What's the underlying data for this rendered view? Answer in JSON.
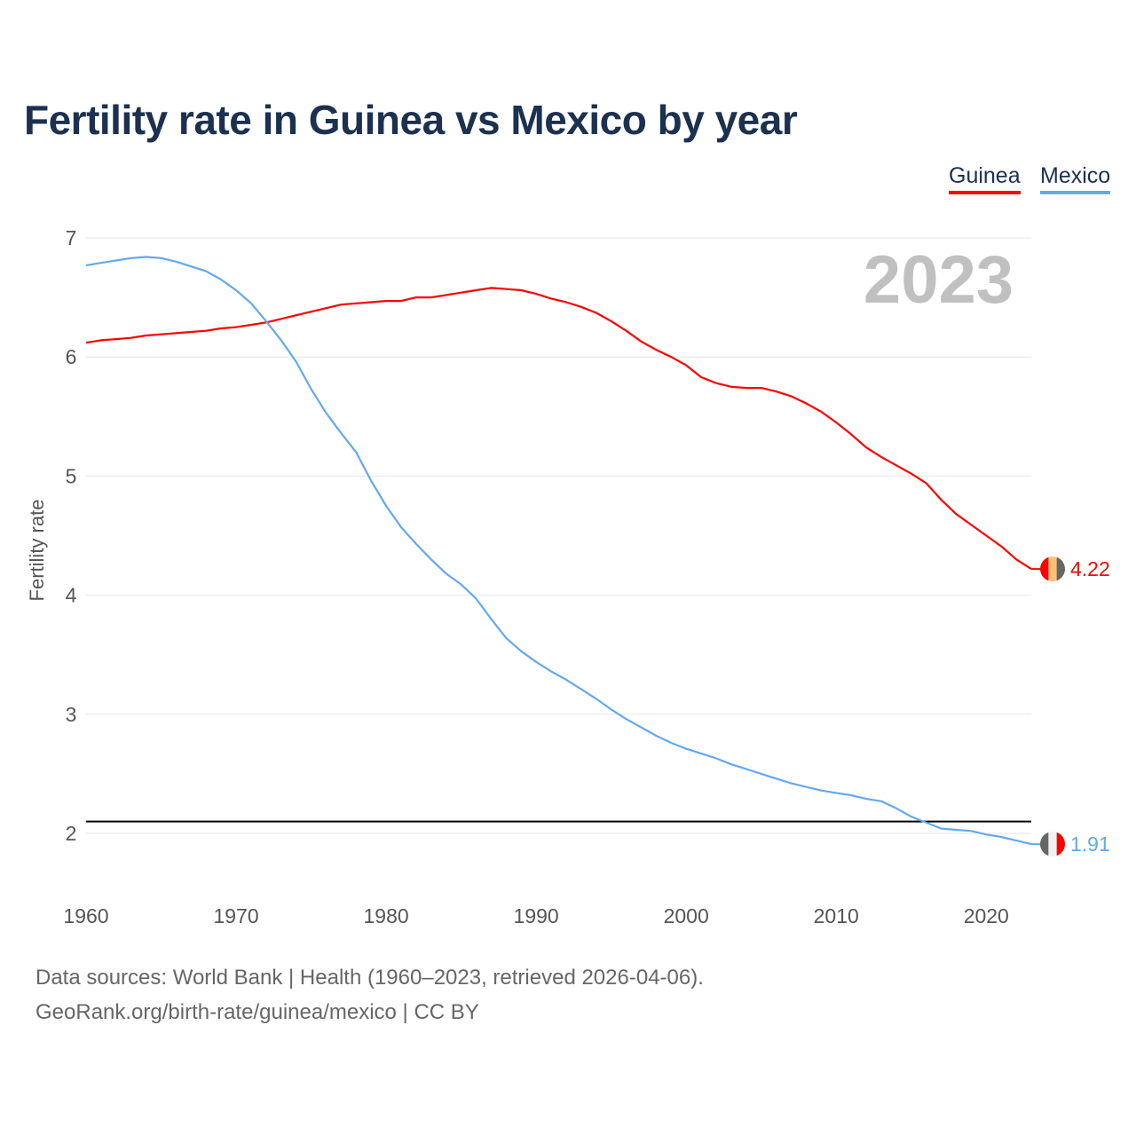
{
  "chart_data": {
    "type": "line",
    "title": "Fertility rate in Guinea vs Mexico by year",
    "xlabel": "",
    "ylabel": "Fertility rate",
    "xlim": [
      1960,
      2023
    ],
    "ylim": [
      1.5,
      7
    ],
    "x_ticks": [
      "1960",
      "1970",
      "1980",
      "1990",
      "2000",
      "2010",
      "2020"
    ],
    "y_ticks": [
      "2",
      "3",
      "4",
      "5",
      "6",
      "7"
    ],
    "grid": true,
    "legend_position": "top-right",
    "current_year": "2023",
    "reference_line": 2.1,
    "x": [
      1960,
      1961,
      1962,
      1963,
      1964,
      1965,
      1966,
      1967,
      1968,
      1969,
      1970,
      1971,
      1972,
      1973,
      1974,
      1975,
      1976,
      1977,
      1978,
      1979,
      1980,
      1981,
      1982,
      1983,
      1984,
      1985,
      1986,
      1987,
      1988,
      1989,
      1990,
      1991,
      1992,
      1993,
      1994,
      1995,
      1996,
      1997,
      1998,
      1999,
      2000,
      2001,
      2002,
      2003,
      2004,
      2005,
      2006,
      2007,
      2008,
      2009,
      2010,
      2011,
      2012,
      2013,
      2014,
      2015,
      2016,
      2017,
      2018,
      2019,
      2020,
      2021,
      2022,
      2023
    ],
    "series": [
      {
        "name": "Guinea",
        "color": "#ff0000",
        "end_label": "4.22",
        "values": [
          6.12,
          6.14,
          6.15,
          6.16,
          6.18,
          6.19,
          6.2,
          6.21,
          6.22,
          6.24,
          6.25,
          6.27,
          6.29,
          6.32,
          6.35,
          6.38,
          6.41,
          6.44,
          6.45,
          6.46,
          6.47,
          6.47,
          6.5,
          6.5,
          6.52,
          6.54,
          6.56,
          6.58,
          6.57,
          6.56,
          6.53,
          6.49,
          6.46,
          6.42,
          6.37,
          6.3,
          6.22,
          6.13,
          6.06,
          6.0,
          5.93,
          5.83,
          5.78,
          5.75,
          5.74,
          5.74,
          5.71,
          5.67,
          5.61,
          5.54,
          5.45,
          5.35,
          5.24,
          5.16,
          5.09,
          5.02,
          4.94,
          4.8,
          4.68,
          4.59,
          4.5,
          4.41,
          4.3,
          4.22
        ]
      },
      {
        "name": "Mexico",
        "color": "#64a8ee",
        "end_label": "1.91",
        "values": [
          6.77,
          6.79,
          6.81,
          6.83,
          6.84,
          6.83,
          6.8,
          6.76,
          6.72,
          6.65,
          6.56,
          6.45,
          6.3,
          6.14,
          5.96,
          5.73,
          5.53,
          5.36,
          5.2,
          4.96,
          4.75,
          4.57,
          4.43,
          4.3,
          4.18,
          4.09,
          3.97,
          3.8,
          3.64,
          3.53,
          3.44,
          3.36,
          3.29,
          3.21,
          3.13,
          3.04,
          2.96,
          2.89,
          2.82,
          2.76,
          2.71,
          2.67,
          2.63,
          2.58,
          2.54,
          2.5,
          2.46,
          2.42,
          2.39,
          2.36,
          2.34,
          2.32,
          2.29,
          2.27,
          2.21,
          2.14,
          2.09,
          2.04,
          2.03,
          2.02,
          1.99,
          1.97,
          1.94,
          1.91
        ]
      }
    ]
  },
  "footer": {
    "line1": "Data sources: World Bank | Health (1960–2023, retrieved 2026-04-06).",
    "line2": "GeoRank.org/birth-rate/guinea/mexico | CC BY"
  }
}
